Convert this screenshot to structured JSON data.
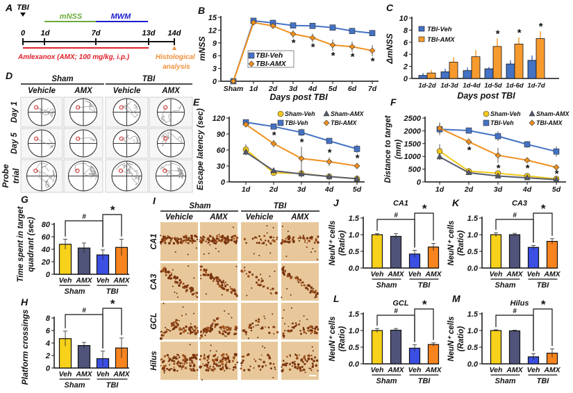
{
  "timeline": {
    "panel": "A",
    "tbi": "TBI",
    "days": [
      "0",
      "1d",
      "7d",
      "13d",
      "14d"
    ],
    "mnss": "mNSS",
    "mwm": "MWM",
    "treatment": "Amlexanox (AMX; 100 mg/kg, i.p.)",
    "histology": [
      "Histological",
      "analysis"
    ],
    "colors": {
      "mnss": "#6aaa3a",
      "mwm": "#1a1ad0",
      "treatment": "#e0202a",
      "histology": "#f0903a"
    }
  },
  "maze": {
    "panel": "D",
    "groups": [
      "Sham",
      "TBI"
    ],
    "columns": [
      "Vehicle",
      "AMX",
      "Vehicle",
      "AMX"
    ],
    "rows": [
      [
        "Day 1"
      ],
      [
        "Day 5"
      ],
      [
        "Probe",
        "trial"
      ]
    ]
  },
  "histology": {
    "panel": "I",
    "groups": [
      "Sham",
      "TBI"
    ],
    "columns": [
      "Vehicle",
      "AMX",
      "Vehicle",
      "AMX"
    ],
    "rows": [
      "CA1",
      "CA3",
      "GCL",
      "Hilus"
    ]
  },
  "chart_data": [
    {
      "panel": "B",
      "type": "line",
      "ylabel": "mNSS",
      "xlabel": "Days post TBI",
      "categories": [
        "Sham",
        "1d",
        "2d",
        "3d",
        "4d",
        "5d",
        "6d",
        "7d"
      ],
      "ylim": [
        0,
        15
      ],
      "yticks": [
        "0",
        "3",
        "6",
        "9",
        "12",
        "15"
      ],
      "legend": "middle-left",
      "series": [
        {
          "name": "TBI-Veh",
          "color": "#4472c4",
          "marker": "square",
          "values": [
            0,
            14.2,
            13.7,
            13.1,
            13.0,
            12.6,
            11.8,
            11.3
          ],
          "errors": [
            0,
            0.3,
            0.3,
            0.3,
            0.3,
            0.4,
            0.5,
            0.4
          ]
        },
        {
          "name": "TBI-AMX",
          "color": "#f0901e",
          "marker": "diamond",
          "values": [
            0,
            13.8,
            13.0,
            11.1,
            10.2,
            8.5,
            8.1,
            7.2
          ],
          "errors": [
            0,
            0.3,
            0.4,
            0.9,
            1.0,
            1.3,
            1.2,
            1.3
          ]
        }
      ],
      "significance": [
        "",
        "",
        "",
        "*",
        "*",
        "*",
        "*",
        "*"
      ]
    },
    {
      "panel": "C",
      "type": "bar",
      "ylabel": "ΔmNSS",
      "xlabel": "Days post TBI",
      "categories": [
        "1d-2d",
        "1d-3d",
        "1d-4d",
        "1d-5d",
        "1d-6d",
        "1d-7d"
      ],
      "ylim": [
        0,
        10
      ],
      "yticks": [
        "0",
        "2",
        "4",
        "6",
        "8",
        "10"
      ],
      "legend": "top-left",
      "series": [
        {
          "name": "TBI-Veh",
          "color": "#4472c4",
          "values": [
            0.5,
            1.1,
            1.3,
            1.6,
            2.4,
            3.0
          ],
          "errors": [
            0.4,
            0.5,
            0.5,
            0.3,
            0.6,
            0.8
          ]
        },
        {
          "name": "TBI-AMX",
          "color": "#f79a2e",
          "values": [
            0.9,
            2.7,
            3.6,
            5.3,
            5.7,
            6.6
          ],
          "errors": [
            0.5,
            0.8,
            1.1,
            1.3,
            1.1,
            1.2
          ]
        }
      ],
      "significance": [
        "",
        "",
        "",
        "*",
        "*",
        "*"
      ]
    },
    {
      "panel": "E",
      "type": "line",
      "ylabel": "Escape latency (sec)",
      "categories": [
        "1d",
        "2d",
        "3d",
        "4d",
        "5d"
      ],
      "ylim": [
        0,
        120
      ],
      "yticks": [
        "0",
        "30",
        "60",
        "90",
        "120"
      ],
      "legend": "top-right",
      "series": [
        {
          "name": "Sham-Veh",
          "color": "#f2c81a",
          "marker": "circle",
          "values": [
            61,
            17,
            16,
            10,
            6
          ],
          "errors": [
            10,
            4,
            5,
            3,
            2
          ]
        },
        {
          "name": "Sham-AMX",
          "color": "#555a6e",
          "marker": "triangle",
          "values": [
            56,
            21,
            15,
            10,
            6
          ],
          "errors": [
            6,
            4,
            7,
            3,
            2
          ]
        },
        {
          "name": "TBI-Veh",
          "color": "#4472c4",
          "marker": "square",
          "values": [
            112,
            104,
            93,
            77,
            62
          ],
          "errors": [
            5,
            3,
            7,
            5,
            8
          ]
        },
        {
          "name": "TBI-AMX",
          "color": "#f0901e",
          "marker": "diamond",
          "values": [
            108,
            72,
            44,
            38,
            30
          ],
          "errors": [
            4,
            7,
            22,
            8,
            6
          ]
        }
      ],
      "significance": [
        "",
        "*",
        "*",
        "*",
        "*"
      ]
    },
    {
      "panel": "F",
      "type": "line",
      "ylabel": [
        "Distance to target",
        "(mm)"
      ],
      "categories": [
        "1d",
        "2d",
        "3d",
        "4d",
        "5d"
      ],
      "ylim": [
        0,
        2500
      ],
      "yticks": [
        "0",
        "500",
        "1000",
        "1500",
        "2000",
        "2500"
      ],
      "legend": "top-right",
      "series": [
        {
          "name": "Sham-Veh",
          "color": "#f2c81a",
          "marker": "circle",
          "values": [
            1200,
            420,
            340,
            230,
            120
          ],
          "errors": [
            280,
            60,
            60,
            50,
            40
          ]
        },
        {
          "name": "Sham-AMX",
          "color": "#555a6e",
          "marker": "triangle",
          "values": [
            980,
            360,
            230,
            160,
            90
          ],
          "errors": [
            120,
            60,
            50,
            40,
            30
          ]
        },
        {
          "name": "TBI-Veh",
          "color": "#4472c4",
          "marker": "square",
          "values": [
            2060,
            2010,
            1790,
            1470,
            1190
          ],
          "errors": [
            230,
            110,
            190,
            130,
            200
          ]
        },
        {
          "name": "TBI-AMX",
          "color": "#f0901e",
          "marker": "diamond",
          "values": [
            2100,
            1570,
            1040,
            850,
            570
          ],
          "errors": [
            230,
            130,
            300,
            110,
            60
          ]
        }
      ],
      "significance": [
        "",
        "*",
        "*",
        "*",
        "*"
      ]
    },
    {
      "panel": "G",
      "type": "bar",
      "ylabel": [
        "Time spent in target",
        "quadrant (sec)"
      ],
      "categories": [
        "Veh",
        "AMX",
        "Veh",
        "AMX"
      ],
      "groups": [
        "Sham",
        "TBI"
      ],
      "ylim": [
        0,
        80
      ],
      "yticks": [
        "0",
        "20",
        "40",
        "60",
        "80"
      ],
      "values": [
        48,
        42,
        31,
        43
      ],
      "errors": [
        8,
        8,
        8,
        13
      ],
      "colors": [
        "#f7d11a",
        "#50547a",
        "#3b4fe3",
        "#f7841e"
      ],
      "comparisons": [
        {
          "between": [
            0,
            2
          ],
          "label": "#"
        },
        {
          "between": [
            2,
            3
          ],
          "label": "*"
        }
      ]
    },
    {
      "panel": "H",
      "type": "bar",
      "ylabel": "Platform crossings",
      "categories": [
        "Veh",
        "AMX",
        "Veh",
        "AMX"
      ],
      "groups": [
        "Sham",
        "TBI"
      ],
      "ylim": [
        0,
        8
      ],
      "yticks": [
        "0",
        "2",
        "4",
        "6",
        "8"
      ],
      "values": [
        4.7,
        3.6,
        1.5,
        3.2
      ],
      "errors": [
        1.2,
        0.5,
        1.2,
        1.6
      ],
      "colors": [
        "#f7d11a",
        "#50547a",
        "#3b4fe3",
        "#f7841e"
      ],
      "comparisons": [
        {
          "between": [
            0,
            2
          ],
          "label": "#"
        },
        {
          "between": [
            2,
            3
          ],
          "label": "*"
        }
      ]
    },
    {
      "panel": "J",
      "type": "bar",
      "title": "CA1",
      "ylabel": [
        "NeuN⁺ cells",
        "(Ratio)"
      ],
      "categories": [
        "Veh",
        "AMX",
        "Veh",
        "AMX"
      ],
      "groups": [
        "Sham",
        "TBI"
      ],
      "ylim": [
        0,
        1.5
      ],
      "yticks": [
        "0.0",
        "0.5",
        "1.0",
        "1.5"
      ],
      "values": [
        1.0,
        0.95,
        0.42,
        0.63
      ],
      "errors": [
        0.03,
        0.08,
        0.11,
        0.11
      ],
      "colors": [
        "#f7d11a",
        "#50547a",
        "#3b4fe3",
        "#f7841e"
      ],
      "comparisons": [
        {
          "between": [
            0,
            2
          ],
          "label": "#"
        },
        {
          "between": [
            2,
            3
          ],
          "label": "*"
        }
      ]
    },
    {
      "panel": "K",
      "type": "bar",
      "title": "CA3",
      "ylabel": [
        "NeuN⁺ cells",
        "(Ratio)"
      ],
      "categories": [
        "Veh",
        "AMX",
        "Veh",
        "AMX"
      ],
      "groups": [
        "Sham",
        "TBI"
      ],
      "ylim": [
        0,
        1.5
      ],
      "yticks": [
        "0.0",
        "0.5",
        "1.0",
        "1.5"
      ],
      "values": [
        1.0,
        1.0,
        0.62,
        0.8
      ],
      "errors": [
        0.06,
        0.04,
        0.06,
        0.08
      ],
      "colors": [
        "#f7d11a",
        "#50547a",
        "#3b4fe3",
        "#f7841e"
      ],
      "comparisons": [
        {
          "between": [
            0,
            2
          ],
          "label": "#"
        },
        {
          "between": [
            2,
            3
          ],
          "label": "*"
        }
      ]
    },
    {
      "panel": "L",
      "type": "bar",
      "title": "GCL",
      "ylabel": [
        "NeuN⁺ cells",
        "(Ratio)"
      ],
      "categories": [
        "Veh",
        "AMX",
        "Veh",
        "AMX"
      ],
      "groups": [
        "Sham",
        "TBI"
      ],
      "ylim": [
        0,
        1.5
      ],
      "yticks": [
        "0.0",
        "0.5",
        "1.0",
        "1.5"
      ],
      "values": [
        1.0,
        1.01,
        0.47,
        0.58
      ],
      "errors": [
        0.06,
        0.05,
        0.1,
        0.05
      ],
      "colors": [
        "#f7d11a",
        "#50547a",
        "#3b4fe3",
        "#f7841e"
      ],
      "comparisons": [
        {
          "between": [
            0,
            2
          ],
          "label": "#"
        },
        {
          "between": [
            2,
            3
          ],
          "label": "*"
        }
      ]
    },
    {
      "panel": "M",
      "type": "bar",
      "title": "Hilus",
      "ylabel": [
        "NeuN⁺ cells",
        "(Ratio)"
      ],
      "categories": [
        "Veh",
        "AMX",
        "Veh",
        "AMX"
      ],
      "groups": [
        "Sham",
        "TBI"
      ],
      "ylim": [
        0,
        1.5
      ],
      "yticks": [
        "0.0",
        "0.5",
        "1.0",
        "1.5"
      ],
      "values": [
        1.0,
        0.99,
        0.21,
        0.32
      ],
      "errors": [
        0.02,
        0.02,
        0.09,
        0.13
      ],
      "colors": [
        "#f7d11a",
        "#50547a",
        "#3b4fe3",
        "#f7841e"
      ],
      "comparisons": [
        {
          "between": [
            0,
            2
          ],
          "label": "#"
        },
        {
          "between": [
            2,
            3
          ],
          "label": "*"
        }
      ]
    }
  ]
}
